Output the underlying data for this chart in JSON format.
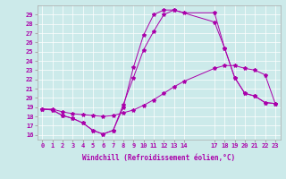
{
  "xlabel": "Windchill (Refroidissement éolien,°C)",
  "bg_color": "#cceaea",
  "line_color": "#aa00aa",
  "xlim": [
    -0.5,
    23.5
  ],
  "ylim": [
    15.5,
    30.0
  ],
  "xticks": [
    0,
    1,
    2,
    3,
    4,
    5,
    6,
    7,
    8,
    9,
    10,
    11,
    12,
    13,
    14,
    17,
    18,
    19,
    20,
    21,
    22,
    23
  ],
  "yticks": [
    16,
    17,
    18,
    19,
    20,
    21,
    22,
    23,
    24,
    25,
    26,
    27,
    28,
    29
  ],
  "line1_x": [
    0,
    1,
    2,
    3,
    4,
    5,
    6,
    7,
    8,
    9,
    10,
    11,
    12,
    13,
    17,
    18,
    19,
    20,
    21,
    22,
    23
  ],
  "line1_y": [
    18.8,
    18.7,
    18.1,
    17.8,
    17.3,
    16.5,
    16.1,
    16.5,
    19.3,
    22.2,
    25.2,
    27.2,
    29.0,
    29.5,
    28.2,
    25.4,
    22.2,
    20.5,
    20.2,
    19.5,
    19.4
  ],
  "line2_x": [
    0,
    1,
    2,
    3,
    4,
    5,
    6,
    7,
    8,
    9,
    10,
    11,
    12,
    13,
    14,
    17,
    18,
    19,
    20,
    21,
    22,
    23
  ],
  "line2_y": [
    18.8,
    18.7,
    18.1,
    17.8,
    17.3,
    16.5,
    16.1,
    16.5,
    19.0,
    23.3,
    26.8,
    29.0,
    29.5,
    29.5,
    29.2,
    29.2,
    25.4,
    22.2,
    20.5,
    20.2,
    19.5,
    19.4
  ],
  "line3_x": [
    0,
    1,
    2,
    3,
    4,
    5,
    6,
    7,
    8,
    9,
    10,
    11,
    12,
    13,
    14,
    17,
    18,
    19,
    20,
    21,
    22,
    23
  ],
  "line3_y": [
    18.8,
    18.8,
    18.5,
    18.3,
    18.2,
    18.1,
    18.0,
    18.1,
    18.4,
    18.7,
    19.2,
    19.8,
    20.5,
    21.2,
    21.8,
    23.2,
    23.5,
    23.5,
    23.2,
    23.0,
    22.5,
    19.4
  ]
}
